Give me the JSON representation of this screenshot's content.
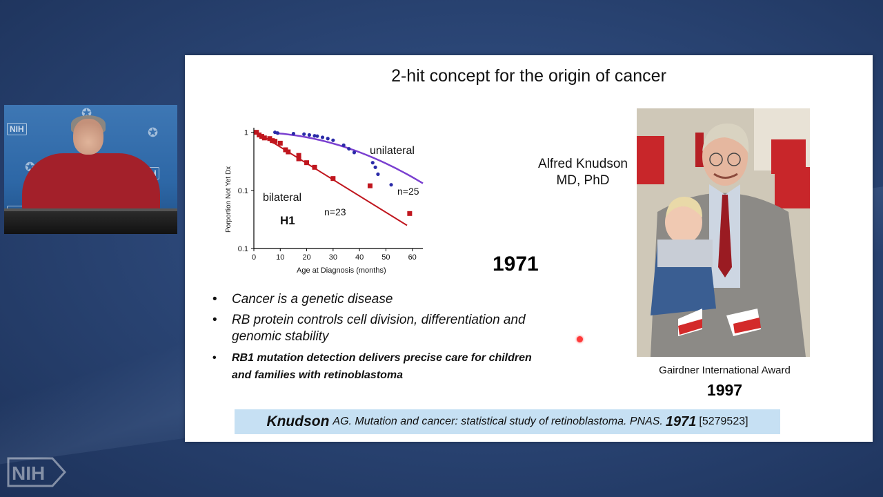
{
  "slide": {
    "title": "2-hit  concept for the origin of cancer",
    "year_big": "1971",
    "person": {
      "name_line1": "Alfred Knudson",
      "name_line2": "MD, PhD"
    },
    "award": {
      "label": "Gairdner International Award",
      "year": "1997"
    },
    "bullets": [
      "Cancer is a genetic disease",
      "RB protein controls cell division, differentiation and genomic stability",
      "RB1 mutation detection delivers precise care for children and families with retinoblastoma"
    ],
    "citation": {
      "author": "Knudson",
      "text": "AG. Mutation and cancer: statistical study of retinoblastoma. PNAS.",
      "year": "1971",
      "pmid": "[5279523]"
    }
  },
  "chart_data": {
    "type": "scatter",
    "title": "",
    "xlabel": "Age at Diagnosis (months)",
    "ylabel": "Porportion Not Yet Dx",
    "x_ticks": [
      "0",
      "10",
      "20",
      "30",
      "40",
      "50",
      "60"
    ],
    "y_ticks": [
      "1",
      "0.1",
      "0.1"
    ],
    "xlim": [
      0,
      64
    ],
    "ylim": [
      0.01,
      1.2
    ],
    "y_scale": "log",
    "annotations": [
      "unilateral",
      "n=25",
      "bilateral",
      "H1",
      "n=23"
    ],
    "series": [
      {
        "name": "unilateral",
        "color": "#2a2aa8",
        "fit_color": "#7a3fd0",
        "marker": "circle",
        "points": [
          [
            8,
            1.0
          ],
          [
            9,
            0.97
          ],
          [
            15,
            0.95
          ],
          [
            19,
            0.93
          ],
          [
            21,
            0.9
          ],
          [
            23,
            0.87
          ],
          [
            24,
            0.86
          ],
          [
            26,
            0.82
          ],
          [
            28,
            0.78
          ],
          [
            30,
            0.73
          ],
          [
            34,
            0.6
          ],
          [
            36,
            0.52
          ],
          [
            38,
            0.45
          ],
          [
            45,
            0.3
          ],
          [
            46,
            0.25
          ],
          [
            47,
            0.19
          ],
          [
            52,
            0.125
          ]
        ]
      },
      {
        "name": "bilateral",
        "color": "#c0161e",
        "fit_color": "#c0161e",
        "marker": "square",
        "points": [
          [
            1,
            1.0
          ],
          [
            2,
            0.9
          ],
          [
            3,
            0.85
          ],
          [
            4,
            0.8
          ],
          [
            6,
            0.78
          ],
          [
            7,
            0.72
          ],
          [
            8,
            0.7
          ],
          [
            10,
            0.65
          ],
          [
            12,
            0.5
          ],
          [
            13,
            0.46
          ],
          [
            17,
            0.4
          ],
          [
            17,
            0.35
          ],
          [
            20,
            0.3
          ],
          [
            23,
            0.25
          ],
          [
            30,
            0.16
          ],
          [
            44,
            0.12
          ],
          [
            59,
            0.04
          ]
        ]
      }
    ]
  },
  "colors": {
    "background": "#2b4676",
    "slide": "#ffffff",
    "citation_bg": "#c6e0f3",
    "laser": "#ff3a3a"
  },
  "video": {
    "wall_logo": "NIH"
  },
  "logo": {
    "text": "NIH"
  }
}
